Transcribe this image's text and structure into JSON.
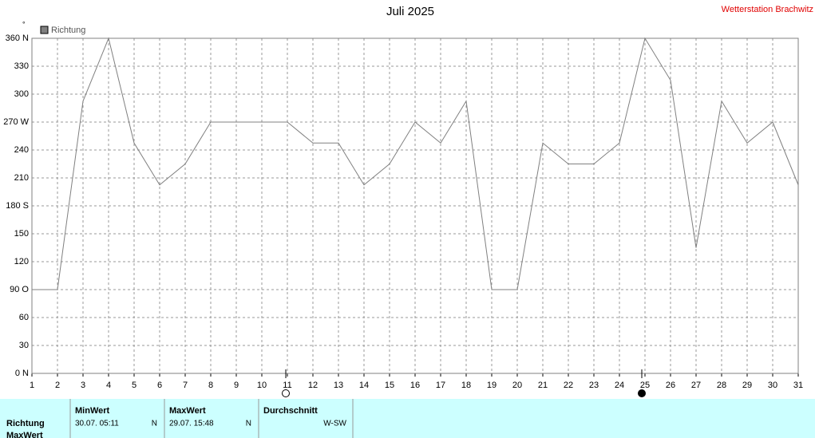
{
  "chart_data": {
    "type": "line",
    "title": "Juli 2025",
    "subtitle": "Wetterstation Brachwitz",
    "y_unit": "°",
    "x": [
      1,
      2,
      3,
      4,
      5,
      6,
      7,
      8,
      9,
      10,
      11,
      12,
      13,
      14,
      15,
      16,
      17,
      18,
      19,
      20,
      21,
      22,
      23,
      24,
      25,
      26,
      27,
      28,
      29,
      30,
      31
    ],
    "series": [
      {
        "name": "Richtung",
        "color": "#808080",
        "values": [
          90,
          90,
          292.5,
          360,
          247.5,
          202.5,
          225,
          270,
          270,
          270,
          270,
          247.5,
          247.5,
          202.5,
          225,
          270,
          247.5,
          292.5,
          90,
          90,
          247.5,
          225,
          225,
          247.5,
          360,
          315,
          135,
          292.5,
          247.5,
          270,
          202.5
        ]
      }
    ],
    "xlim": [
      1,
      31
    ],
    "xticks": [
      1,
      2,
      3,
      4,
      5,
      6,
      7,
      8,
      9,
      10,
      11,
      12,
      13,
      14,
      15,
      16,
      17,
      18,
      19,
      20,
      21,
      22,
      23,
      24,
      25,
      26,
      27,
      28,
      29,
      30,
      31
    ],
    "ylim": [
      0,
      360
    ],
    "yticks": [
      {
        "value": 0,
        "label": "0  N"
      },
      30,
      60,
      {
        "value": 90,
        "label": "90  O"
      },
      120,
      150,
      {
        "value": 180,
        "label": "180 S"
      },
      210,
      240,
      {
        "value": 270,
        "label": "270 W"
      },
      300,
      330,
      {
        "value": 360,
        "label": "360 N"
      }
    ],
    "grid": true,
    "legend": "top-left"
  },
  "table": {
    "row_labels": [
      "Richtung",
      "MaxWert"
    ],
    "headers": [
      "MinWert",
      "MaxWert",
      "Durchschnitt"
    ],
    "rows": [
      [
        [
          "30.07.  05:11",
          "N"
        ],
        [
          "29.07.  15:48",
          "N"
        ],
        [
          "W-SW"
        ]
      ]
    ]
  }
}
